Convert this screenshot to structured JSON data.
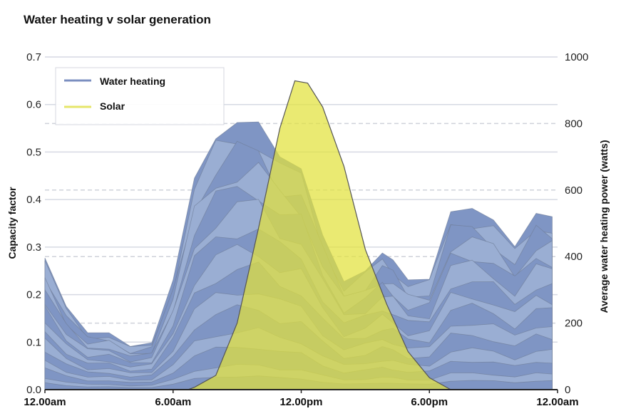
{
  "chart_data": {
    "type": "area",
    "title": "Water heating v solar generation",
    "xlabel": "",
    "ylabel": "Capacity factor",
    "ylabel_right": "Average water heating power (watts)",
    "x_ticks": [
      {
        "hour": 0,
        "label": "12.00am"
      },
      {
        "hour": 6,
        "label": "6.00am"
      },
      {
        "hour": 12,
        "label": "12.00pm"
      },
      {
        "hour": 18,
        "label": "6.00pm"
      },
      {
        "hour": 24,
        "label": "12.00am"
      }
    ],
    "y_left": {
      "range": [
        0,
        0.7
      ],
      "ticks": [
        "0.0",
        "0.1",
        "0.2",
        "0.3",
        "0.4",
        "0.5",
        "0.6",
        "0.7"
      ]
    },
    "y_right": {
      "range": [
        0,
        1000
      ],
      "ticks": [
        "0",
        "200",
        "400",
        "600",
        "800",
        "1000"
      ]
    },
    "legend": {
      "placement": "top-left",
      "entries": [
        {
          "label": "Water heating",
          "color": "#7b8fc0"
        },
        {
          "label": "Solar",
          "color": "#e6e66a"
        }
      ]
    },
    "series": [
      {
        "name": "Water heating",
        "axis": "right",
        "units": "watts",
        "x": [
          0,
          1,
          2,
          3,
          4,
          5,
          6,
          7,
          8,
          9,
          10,
          11,
          12,
          13,
          14,
          15,
          15.8,
          16.3,
          17,
          18,
          19,
          20,
          21,
          22,
          23,
          23.75
        ],
        "values": [
          396,
          250,
          171,
          171,
          130,
          141,
          330,
          636,
          754,
          803,
          805,
          700,
          664,
          465,
          325,
          357,
          411,
          390,
          330,
          332,
          535,
          545,
          510,
          430,
          530,
          520
        ]
      },
      {
        "name": "Solar",
        "axis": "left",
        "units": "capacity factor",
        "x": [
          6.7,
          7,
          8,
          9,
          10,
          11,
          11.7,
          12.3,
          13,
          14,
          15,
          16,
          17,
          18,
          19
        ],
        "values": [
          0,
          0.005,
          0.03,
          0.14,
          0.34,
          0.55,
          0.65,
          0.645,
          0.595,
          0.47,
          0.295,
          0.18,
          0.08,
          0.025,
          0
        ]
      }
    ],
    "colors": {
      "water_light": "#9aaed3",
      "water_dark": "#7f95c4",
      "water_stroke": "#6f7d99",
      "solar": "#e2e23c",
      "grid": "#d6d9e3",
      "dashed": "#cfd2da"
    }
  }
}
